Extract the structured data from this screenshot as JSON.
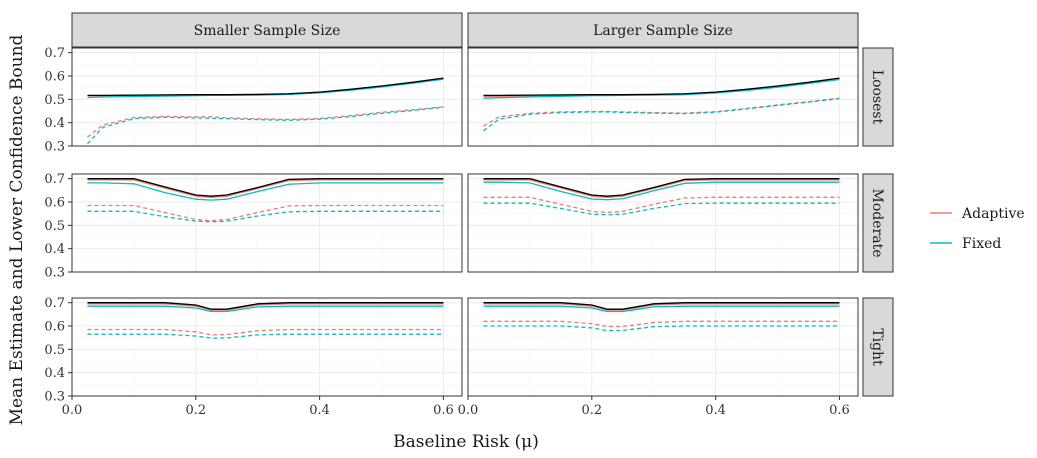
{
  "chart_data": {
    "type": "line",
    "xlabel": "Baseline Risk (μ)",
    "ylabel": "Mean Estimate and Lower Confidence Bound",
    "xlim": [
      0,
      0.63
    ],
    "ylim": [
      0.3,
      0.72
    ],
    "x_ticks": [
      0.0,
      0.2,
      0.4,
      0.6
    ],
    "x_tick_labels": [
      "0.0",
      "0.2",
      "0.4",
      "0.6"
    ],
    "y_ticks": [
      0.3,
      0.4,
      0.5,
      0.6,
      0.7
    ],
    "y_tick_labels": [
      "0.3",
      "0.4",
      "0.5",
      "0.6",
      "0.7"
    ],
    "columns": [
      "Smaller Sample Size",
      "Larger Sample Size"
    ],
    "rows": [
      "Loosest",
      "Moderate",
      "Tight"
    ],
    "grid": true,
    "legend": {
      "placement": "right",
      "entries": [
        {
          "label": "Adaptive",
          "color": "#f8766d"
        },
        {
          "label": "Fixed",
          "color": "#00bfc4"
        }
      ]
    },
    "truth_color": "#000000",
    "x": [
      0.025,
      0.05,
      0.1,
      0.15,
      0.2,
      0.225,
      0.25,
      0.3,
      0.35,
      0.4,
      0.45,
      0.5,
      0.55,
      0.6
    ],
    "panels": [
      {
        "column": "Smaller Sample Size",
        "row": "Loosest",
        "series": [
          {
            "name": "Adaptive",
            "kind": "estimate",
            "values": [
              0.515,
              0.515,
              0.517,
              0.518,
              0.519,
              0.519,
              0.519,
              0.52,
              0.523,
              0.53,
              0.542,
              0.556,
              0.572,
              0.59
            ]
          },
          {
            "name": "Fixed",
            "kind": "estimate",
            "values": [
              0.508,
              0.51,
              0.512,
              0.514,
              0.516,
              0.517,
              0.517,
              0.518,
              0.521,
              0.528,
              0.539,
              0.553,
              0.569,
              0.586
            ]
          },
          {
            "name": "",
            "kind": "truth",
            "values": [
              0.517,
              0.517,
              0.518,
              0.519,
              0.52,
              0.52,
              0.52,
              0.521,
              0.524,
              0.531,
              0.543,
              0.557,
              0.573,
              0.591
            ]
          },
          {
            "name": "Adaptive",
            "kind": "lower",
            "values": [
              0.338,
              0.39,
              0.422,
              0.427,
              0.425,
              0.425,
              0.421,
              0.417,
              0.414,
              0.418,
              0.43,
              0.444,
              0.455,
              0.468
            ]
          },
          {
            "name": "Fixed",
            "kind": "lower",
            "values": [
              0.31,
              0.38,
              0.417,
              0.423,
              0.42,
              0.419,
              0.417,
              0.413,
              0.41,
              0.415,
              0.426,
              0.44,
              0.452,
              0.466
            ]
          }
        ]
      },
      {
        "column": "Larger Sample Size",
        "row": "Loosest",
        "series": [
          {
            "name": "Adaptive",
            "kind": "estimate",
            "values": [
              0.512,
              0.513,
              0.515,
              0.517,
              0.519,
              0.519,
              0.519,
              0.52,
              0.523,
              0.53,
              0.542,
              0.556,
              0.572,
              0.59
            ]
          },
          {
            "name": "Fixed",
            "kind": "estimate",
            "values": [
              0.505,
              0.507,
              0.51,
              0.513,
              0.516,
              0.516,
              0.517,
              0.518,
              0.52,
              0.527,
              0.538,
              0.552,
              0.568,
              0.585
            ]
          },
          {
            "name": "",
            "kind": "truth",
            "values": [
              0.517,
              0.517,
              0.518,
              0.519,
              0.52,
              0.52,
              0.52,
              0.521,
              0.524,
              0.531,
              0.543,
              0.557,
              0.573,
              0.591
            ]
          },
          {
            "name": "Adaptive",
            "kind": "lower",
            "values": [
              0.385,
              0.425,
              0.44,
              0.446,
              0.448,
              0.448,
              0.446,
              0.443,
              0.441,
              0.447,
              0.461,
              0.476,
              0.49,
              0.505
            ]
          },
          {
            "name": "Fixed",
            "kind": "lower",
            "values": [
              0.365,
              0.415,
              0.436,
              0.443,
              0.446,
              0.446,
              0.444,
              0.441,
              0.439,
              0.445,
              0.459,
              0.474,
              0.488,
              0.503
            ]
          }
        ]
      },
      {
        "column": "Smaller Sample Size",
        "row": "Moderate",
        "series": [
          {
            "name": "Adaptive",
            "kind": "estimate",
            "values": [
              0.695,
              0.695,
              0.695,
              0.66,
              0.625,
              0.62,
              0.625,
              0.658,
              0.692,
              0.695,
              0.695,
              0.695,
              0.695,
              0.695
            ]
          },
          {
            "name": "Fixed",
            "kind": "estimate",
            "values": [
              0.682,
              0.682,
              0.678,
              0.64,
              0.612,
              0.608,
              0.612,
              0.645,
              0.676,
              0.682,
              0.682,
              0.682,
              0.682,
              0.682
            ]
          },
          {
            "name": "",
            "kind": "truth",
            "values": [
              0.7,
              0.7,
              0.7,
              0.665,
              0.63,
              0.625,
              0.63,
              0.662,
              0.697,
              0.7,
              0.7,
              0.7,
              0.7,
              0.7
            ]
          },
          {
            "name": "Adaptive",
            "kind": "lower",
            "values": [
              0.585,
              0.585,
              0.585,
              0.555,
              0.525,
              0.52,
              0.525,
              0.555,
              0.583,
              0.585,
              0.585,
              0.585,
              0.585,
              0.585
            ]
          },
          {
            "name": "Fixed",
            "kind": "lower",
            "values": [
              0.56,
              0.56,
              0.56,
              0.537,
              0.518,
              0.515,
              0.518,
              0.54,
              0.558,
              0.56,
              0.56,
              0.56,
              0.56,
              0.56
            ]
          }
        ]
      },
      {
        "column": "Larger Sample Size",
        "row": "Moderate",
        "series": [
          {
            "name": "Adaptive",
            "kind": "estimate",
            "values": [
              0.695,
              0.695,
              0.695,
              0.66,
              0.625,
              0.62,
              0.625,
              0.658,
              0.692,
              0.695,
              0.695,
              0.695,
              0.695,
              0.695
            ]
          },
          {
            "name": "Fixed",
            "kind": "estimate",
            "values": [
              0.685,
              0.685,
              0.682,
              0.645,
              0.613,
              0.61,
              0.614,
              0.648,
              0.68,
              0.685,
              0.685,
              0.685,
              0.685,
              0.685
            ]
          },
          {
            "name": "",
            "kind": "truth",
            "values": [
              0.7,
              0.7,
              0.7,
              0.665,
              0.63,
              0.625,
              0.63,
              0.662,
              0.697,
              0.7,
              0.7,
              0.7,
              0.7,
              0.7
            ]
          },
          {
            "name": "Adaptive",
            "kind": "lower",
            "values": [
              0.62,
              0.62,
              0.62,
              0.59,
              0.56,
              0.555,
              0.56,
              0.59,
              0.617,
              0.62,
              0.62,
              0.62,
              0.62,
              0.62
            ]
          },
          {
            "name": "Fixed",
            "kind": "lower",
            "values": [
              0.595,
              0.595,
              0.595,
              0.572,
              0.548,
              0.545,
              0.548,
              0.572,
              0.593,
              0.595,
              0.595,
              0.595,
              0.595,
              0.595
            ]
          }
        ]
      },
      {
        "column": "Smaller Sample Size",
        "row": "Tight",
        "series": [
          {
            "name": "Adaptive",
            "kind": "estimate",
            "values": [
              0.695,
              0.695,
              0.695,
              0.695,
              0.685,
              0.668,
              0.668,
              0.69,
              0.695,
              0.695,
              0.695,
              0.695,
              0.695,
              0.695
            ]
          },
          {
            "name": "Fixed",
            "kind": "estimate",
            "values": [
              0.685,
              0.685,
              0.685,
              0.685,
              0.677,
              0.662,
              0.662,
              0.682,
              0.685,
              0.685,
              0.685,
              0.685,
              0.685,
              0.685
            ]
          },
          {
            "name": "",
            "kind": "truth",
            "values": [
              0.7,
              0.7,
              0.7,
              0.7,
              0.69,
              0.672,
              0.672,
              0.695,
              0.7,
              0.7,
              0.7,
              0.7,
              0.7,
              0.7
            ]
          },
          {
            "name": "Adaptive",
            "kind": "lower",
            "values": [
              0.585,
              0.585,
              0.585,
              0.585,
              0.575,
              0.562,
              0.563,
              0.58,
              0.585,
              0.585,
              0.585,
              0.585,
              0.585,
              0.585
            ]
          },
          {
            "name": "Fixed",
            "kind": "lower",
            "values": [
              0.565,
              0.565,
              0.565,
              0.565,
              0.557,
              0.548,
              0.549,
              0.562,
              0.565,
              0.565,
              0.565,
              0.565,
              0.565,
              0.565
            ]
          }
        ]
      },
      {
        "column": "Larger Sample Size",
        "row": "Tight",
        "series": [
          {
            "name": "Adaptive",
            "kind": "estimate",
            "values": [
              0.695,
              0.695,
              0.695,
              0.695,
              0.685,
              0.668,
              0.668,
              0.69,
              0.695,
              0.695,
              0.695,
              0.695,
              0.695,
              0.695
            ]
          },
          {
            "name": "Fixed",
            "kind": "estimate",
            "values": [
              0.685,
              0.685,
              0.685,
              0.685,
              0.677,
              0.662,
              0.662,
              0.682,
              0.685,
              0.685,
              0.685,
              0.685,
              0.685,
              0.685
            ]
          },
          {
            "name": "",
            "kind": "truth",
            "values": [
              0.7,
              0.7,
              0.7,
              0.7,
              0.69,
              0.672,
              0.672,
              0.695,
              0.7,
              0.7,
              0.7,
              0.7,
              0.7,
              0.7
            ]
          },
          {
            "name": "Adaptive",
            "kind": "lower",
            "values": [
              0.62,
              0.62,
              0.62,
              0.62,
              0.61,
              0.598,
              0.598,
              0.615,
              0.62,
              0.62,
              0.62,
              0.62,
              0.62,
              0.62
            ]
          },
          {
            "name": "Fixed",
            "kind": "lower",
            "values": [
              0.6,
              0.6,
              0.6,
              0.6,
              0.592,
              0.58,
              0.581,
              0.597,
              0.6,
              0.6,
              0.6,
              0.6,
              0.6,
              0.6
            ]
          }
        ]
      }
    ]
  }
}
